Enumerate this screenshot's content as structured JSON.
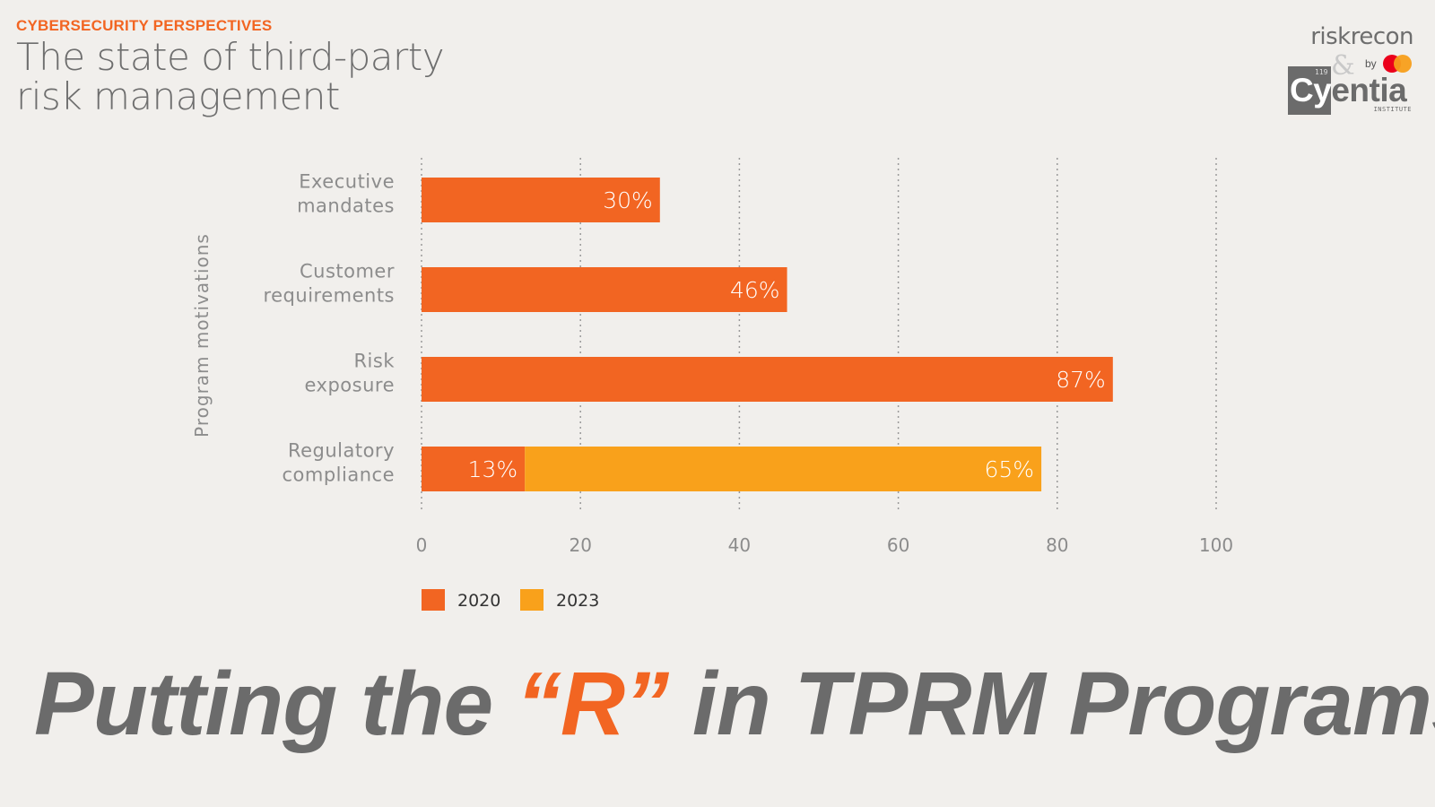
{
  "header": {
    "kicker": "CYBERSECURITY PERSPECTIVES",
    "title_line1": "The state of third-party",
    "title_line2": "risk management"
  },
  "logo": {
    "riskrecon": "riskrecon",
    "amp": "&",
    "by": "by",
    "cyentia_number": "119",
    "cyentia_c": "Cy",
    "cyentia_rest": "entia",
    "institute": "INSTITUTE",
    "colors": {
      "mc_red": "#eb001b",
      "mc_orange": "#f79e1b"
    }
  },
  "chart_data": {
    "type": "bar",
    "orientation": "horizontal",
    "ylabel": "Program motivations",
    "categories": [
      [
        "Executive",
        "mandates"
      ],
      [
        "Customer",
        "requirements"
      ],
      [
        "Risk",
        "exposure"
      ],
      [
        "Regulatory",
        "compliance"
      ]
    ],
    "series": [
      {
        "name": "2020",
        "color": "#f26522",
        "values": [
          30,
          46,
          87,
          13
        ]
      },
      {
        "name": "2023",
        "color": "#f9a11b",
        "values": [
          null,
          null,
          null,
          65
        ]
      }
    ],
    "value_labels": [
      [
        "30%",
        "46%",
        "87%",
        "13%"
      ],
      [
        null,
        null,
        null,
        "65%"
      ]
    ],
    "xlim": [
      0,
      100
    ],
    "xticks": [
      0,
      20,
      40,
      60,
      80,
      100
    ],
    "grid": "vertical dotted",
    "legend_position": "bottom-left"
  },
  "headline": {
    "part1": "Putting the ",
    "highlight": "“R”",
    "part2": " in TPRM Programs"
  }
}
